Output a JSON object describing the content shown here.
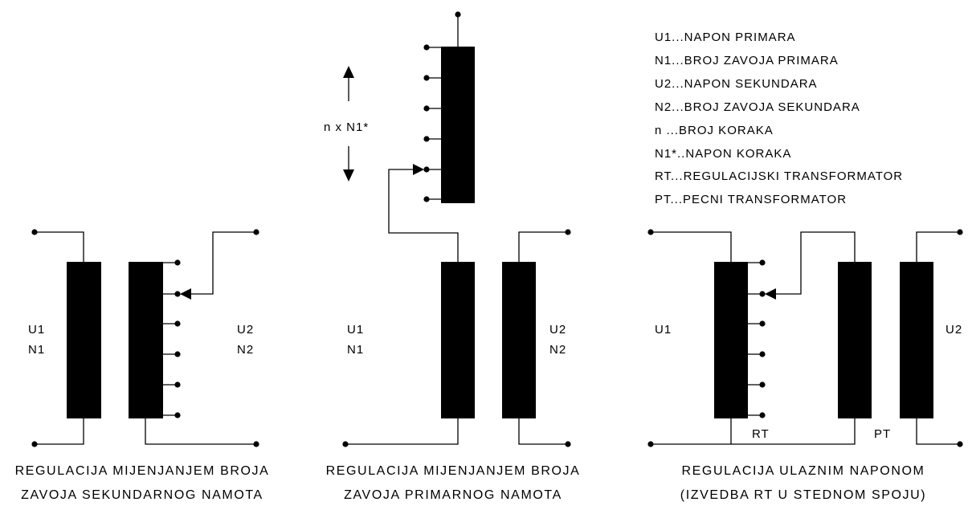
{
  "legend": [
    "U1...NAPON PRIMARA",
    "N1...BROJ ZAVOJA PRIMARA",
    "U2...NAPON SEKUNDARA",
    "N2...BROJ ZAVOJA SEKUNDARA",
    "n ...BROJ KORAKA",
    "N1*..NAPON KORAKA",
    "RT...REGULACIJSKI TRANSFORMATOR",
    "PT...PECNI TRANSFORMATOR"
  ],
  "left": {
    "u1": "U1",
    "n1": "N1",
    "u2": "U2",
    "n2": "N2",
    "caption1": "REGULACIJA MIJENJANJEM BROJA",
    "caption2": "ZAVOJA SEKUNDARNOG NAMOTA"
  },
  "middle": {
    "u1": "U1",
    "n1": "N1",
    "u2": "U2",
    "n2": "N2",
    "step_label": "n x N1*",
    "caption1": "REGULACIJA MIJENJANJEM BROJA",
    "caption2": "ZAVOJA PRIMARNOG NAMOTA"
  },
  "right": {
    "u1": "U1",
    "u2": "U2",
    "rt": "RT",
    "pt": "PT",
    "caption1": "REGULACIJA ULAZNIM NAPONOM",
    "caption2": "(IZVEDBA RT U STEDNOM SPOJU)"
  }
}
